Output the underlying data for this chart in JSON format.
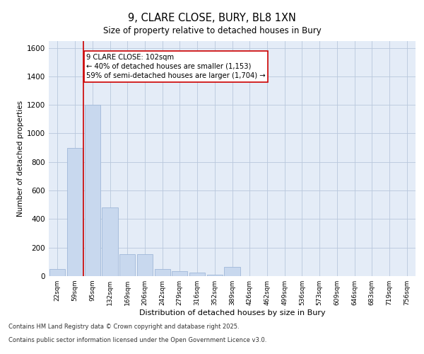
{
  "title_line1": "9, CLARE CLOSE, BURY, BL8 1XN",
  "title_line2": "Size of property relative to detached houses in Bury",
  "xlabel": "Distribution of detached houses by size in Bury",
  "ylabel": "Number of detached properties",
  "categories": [
    "22sqm",
    "59sqm",
    "95sqm",
    "132sqm",
    "169sqm",
    "206sqm",
    "242sqm",
    "279sqm",
    "316sqm",
    "352sqm",
    "389sqm",
    "426sqm",
    "462sqm",
    "499sqm",
    "536sqm",
    "573sqm",
    "609sqm",
    "646sqm",
    "683sqm",
    "719sqm",
    "756sqm"
  ],
  "values": [
    50,
    900,
    1200,
    480,
    155,
    155,
    50,
    35,
    25,
    10,
    65,
    0,
    0,
    0,
    0,
    0,
    0,
    0,
    0,
    0,
    0
  ],
  "bar_color": "#c8d8ee",
  "bar_edge_color": "#a0b8d8",
  "vline_x": 1.5,
  "vline_color": "#cc0000",
  "annotation_text": "9 CLARE CLOSE: 102sqm\n← 40% of detached houses are smaller (1,153)\n59% of semi-detached houses are larger (1,704) →",
  "annotation_box_color": "#ffffff",
  "annotation_box_edge": "#cc0000",
  "ylim": [
    0,
    1650
  ],
  "yticks": [
    0,
    200,
    400,
    600,
    800,
    1000,
    1200,
    1400,
    1600
  ],
  "grid_color": "#d0d8e8",
  "background_color": "#e4ecf7",
  "footer_line1": "Contains HM Land Registry data © Crown copyright and database right 2025.",
  "footer_line2": "Contains public sector information licensed under the Open Government Licence v3.0."
}
